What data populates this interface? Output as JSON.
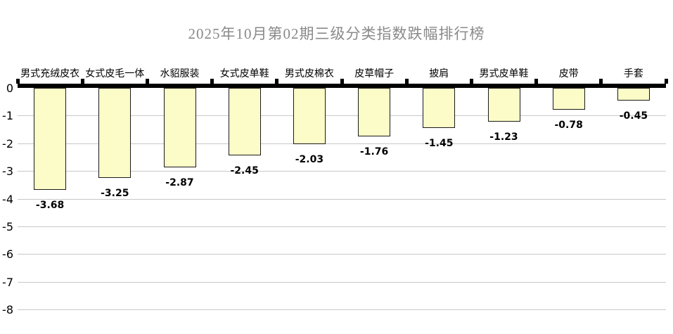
{
  "title": "2025年10月第02期三级分类指数跌幅排行榜",
  "colors": {
    "background": "#ffffff",
    "title_text": "#8a8a8a",
    "axis": "#000000",
    "gridline": "#c8c8c8",
    "bar_fill": "#fcfcc8",
    "bar_border": "#1a1a1a",
    "label_text": "#000000"
  },
  "chart_data": {
    "type": "bar",
    "title": "2025年10月第02期三级分类指数跌幅排行榜",
    "categories": [
      "男式充绒皮衣",
      "女式皮毛一体",
      "水貂服装",
      "女式皮单鞋",
      "男式皮棉衣",
      "皮草帽子",
      "披肩",
      "男式皮单鞋",
      "皮带",
      "手套"
    ],
    "values": [
      -3.68,
      -3.25,
      -2.87,
      -2.45,
      -2.03,
      -1.76,
      -1.45,
      -1.23,
      -0.78,
      -0.45
    ],
    "data_labels": [
      "-3.68",
      "-3.25",
      "-2.87",
      "-2.45",
      "-2.03",
      "-1.76",
      "-1.45",
      "-1.23",
      "-0.78",
      "-0.45"
    ],
    "xlabel": "",
    "ylabel": "",
    "ylim": [
      -8,
      0
    ],
    "yticks": [
      0,
      -1,
      -2,
      -3,
      -4,
      -5,
      -6,
      -7,
      -8
    ],
    "grid": true,
    "legend": "none",
    "bar_orientation": "vertical-negative",
    "value_label_position": "below-bar",
    "category_label_position": "above-axis"
  }
}
